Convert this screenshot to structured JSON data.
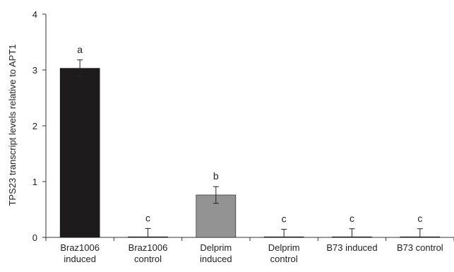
{
  "chart_data": {
    "type": "bar",
    "title": "",
    "xlabel": "",
    "ylabel": "TPS23  transcript levels relative to APT1",
    "ylim": [
      0,
      4
    ],
    "yticks": [
      0,
      1,
      2,
      3,
      4
    ],
    "grid": false,
    "legend": "none",
    "categories": [
      [
        "Braz1006",
        "induced"
      ],
      [
        "Braz1006",
        "control"
      ],
      [
        "Delprim",
        "induced"
      ],
      [
        "Delprim",
        "control"
      ],
      [
        "B73 induced"
      ],
      [
        "B73 control"
      ]
    ],
    "values": [
      3.03,
      0.01,
      0.76,
      0.005,
      0.005,
      0.005
    ],
    "errors": [
      0.15,
      0.15,
      0.15,
      0.14,
      0.15,
      0.15
    ],
    "significance": [
      "a",
      "c",
      "b",
      "c",
      "c",
      "c"
    ],
    "colors": [
      "#1e1b1c",
      "#1e1b1c",
      "#939393",
      "#1e1b1c",
      "#1e1b1c",
      "#1e1b1c"
    ],
    "axis_color": "#333333"
  }
}
